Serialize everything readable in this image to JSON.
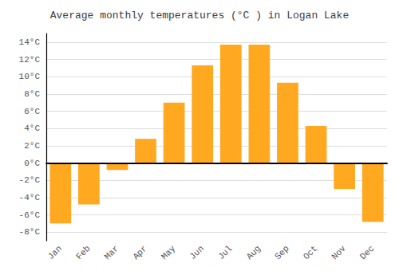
{
  "chart_data": {
    "type": "bar",
    "title": "Average monthly temperatures (°C ) in Logan Lake",
    "categories": [
      "Jan",
      "Feb",
      "Mar",
      "Apr",
      "May",
      "Jun",
      "Jul",
      "Aug",
      "Sep",
      "Oct",
      "Nov",
      "Dec"
    ],
    "values": [
      -7.0,
      -4.8,
      -0.8,
      2.8,
      7.0,
      11.3,
      13.7,
      13.7,
      9.3,
      4.3,
      -3.0,
      -6.8
    ],
    "color": "#FFA820",
    "ylim": [
      -9,
      15
    ],
    "yticks": [
      {
        "value": -8,
        "label": "-8°C"
      },
      {
        "value": -6,
        "label": "-6°C"
      },
      {
        "value": -4,
        "label": "-4°C"
      },
      {
        "value": -2,
        "label": "-2°C"
      },
      {
        "value": 0,
        "label": "0°C"
      },
      {
        "value": 2,
        "label": "2°C"
      },
      {
        "value": 4,
        "label": "4°C"
      },
      {
        "value": 6,
        "label": "6°C"
      },
      {
        "value": 8,
        "label": "8°C"
      },
      {
        "value": 10,
        "label": "10°C"
      },
      {
        "value": 12,
        "label": "12°C"
      },
      {
        "value": 14,
        "label": "14°C"
      }
    ],
    "grid": true
  }
}
